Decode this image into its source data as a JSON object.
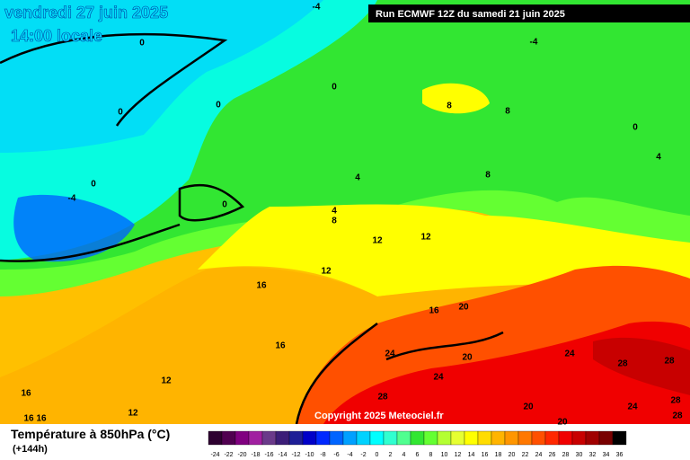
{
  "header": {
    "title": "vendredi 27 juin 2025",
    "subtitle": "14:00 locale",
    "run": "Run ECMWF 12Z du samedi 21 juin 2025",
    "copyright": "Copyright 2025 Meteociel.fr"
  },
  "legend": {
    "title": "Température à 850hPa (°C)",
    "lead": "(+144h)",
    "values": [
      -24,
      -22,
      -20,
      -18,
      -16,
      -14,
      -12,
      -10,
      -8,
      -6,
      -4,
      -2,
      0,
      2,
      4,
      6,
      8,
      10,
      12,
      14,
      16,
      18,
      20,
      22,
      24,
      26,
      28,
      30,
      32,
      34,
      36
    ],
    "colors": [
      "#2d0030",
      "#500050",
      "#800080",
      "#a020a0",
      "#6a3a8a",
      "#3c1e78",
      "#1e1e96",
      "#0000c8",
      "#0028ff",
      "#0064ff",
      "#00a0ff",
      "#00d2ff",
      "#00ffff",
      "#30ffd0",
      "#50ff90",
      "#32e632",
      "#64ff32",
      "#b4ff32",
      "#e6ff32",
      "#ffff00",
      "#ffdc00",
      "#ffb400",
      "#ff9600",
      "#ff7800",
      "#ff5000",
      "#ff2800",
      "#f00000",
      "#c80000",
      "#a00000",
      "#780000",
      "#000000"
    ]
  },
  "contours": [
    -4,
    0,
    -4,
    0,
    8,
    8,
    0,
    0,
    0,
    4,
    0,
    4,
    8,
    -4,
    0,
    4,
    8,
    12,
    12,
    12,
    16,
    16,
    20,
    16,
    24,
    20,
    24,
    28,
    28,
    12,
    24,
    28,
    16,
    28,
    12,
    16,
    16,
    20,
    24,
    28,
    20
  ]
}
